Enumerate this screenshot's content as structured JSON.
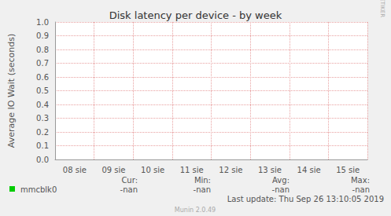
{
  "chart_data": {
    "type": "line",
    "title": "Disk latency per device - by week",
    "y_label": "Average IO Wait (seconds)",
    "categories": [
      "08 sie",
      "09 sie",
      "10 sie",
      "11 sie",
      "12 sie",
      "13 sie",
      "14 sie",
      "15 sie"
    ],
    "series": [
      {
        "name": "mmcblk0",
        "color": "#00cc00",
        "values": [
          null,
          null,
          null,
          null,
          null,
          null,
          null,
          null
        ]
      }
    ],
    "ylim": [
      0,
      1
    ],
    "yticks": [
      {
        "value": 0,
        "label": "0.0"
      },
      0.1,
      0.2,
      0.3,
      0.4,
      0.5,
      0.6,
      0.7,
      0.8,
      0.9,
      {
        "value": 1,
        "label": "1.0"
      }
    ],
    "grid": true,
    "legend_table": {
      "headers": [
        "Cur:",
        "Min:",
        "Avg:",
        "Max:"
      ],
      "rows": [
        {
          "name": "mmcblk0",
          "cells": [
            "-nan",
            "-nan",
            "-nan",
            "-nan"
          ]
        }
      ]
    },
    "footer": "Last update: Thu Sep 26 13:10:05 2019",
    "credits": "Munin 2.0.49",
    "side_text": "RRDTOOL / TOBI OETIKER"
  }
}
